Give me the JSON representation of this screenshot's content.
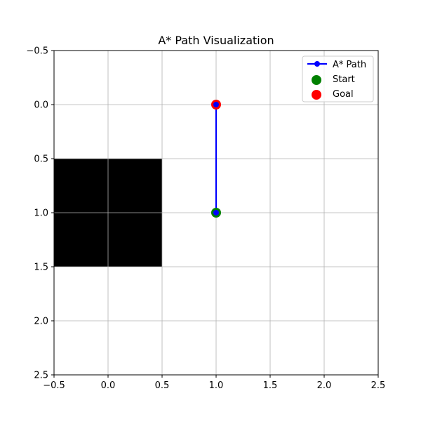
{
  "chart_data": {
    "type": "line",
    "title": "A* Path Visualization",
    "xlabel": "",
    "ylabel": "",
    "xlim": [
      -0.5,
      2.5
    ],
    "ylim": [
      2.5,
      -0.5
    ],
    "y_inverted": true,
    "grid": true,
    "legend_position": "top-right",
    "x_ticks": [
      -0.5,
      0.0,
      0.5,
      1.0,
      1.5,
      2.0,
      2.5
    ],
    "y_ticks": [
      -0.5,
      0.0,
      0.5,
      1.0,
      1.5,
      2.0,
      2.5
    ],
    "x_tick_labels": [
      "−0.5",
      "0.0",
      "0.5",
      "1.0",
      "1.5",
      "2.0",
      "2.5"
    ],
    "y_tick_labels": [
      "−0.5",
      "0.0",
      "0.5",
      "1.0",
      "1.5",
      "2.0",
      "2.5"
    ],
    "grid_values": [
      [
        0,
        0,
        0
      ],
      [
        1,
        0,
        0
      ],
      [
        0,
        0,
        0
      ]
    ],
    "obstacle_value": 1,
    "obstacle_color": "#000000",
    "series": [
      {
        "name": "A* Path",
        "kind": "line",
        "color": "#0000ff",
        "marker": "circle",
        "points": [
          [
            1,
            1
          ],
          [
            1,
            0
          ]
        ]
      },
      {
        "name": "Start",
        "kind": "scatter",
        "color": "#008000",
        "points": [
          [
            1,
            1
          ]
        ]
      },
      {
        "name": "Goal",
        "kind": "scatter",
        "color": "#ff0000",
        "points": [
          [
            1,
            0
          ]
        ]
      }
    ]
  }
}
